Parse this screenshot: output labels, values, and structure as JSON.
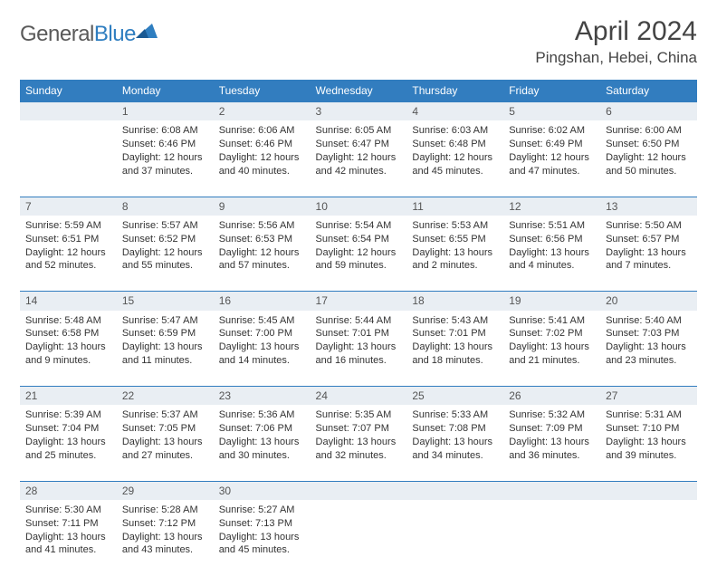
{
  "logo": {
    "text1": "General",
    "text2": "Blue"
  },
  "title": "April 2024",
  "location": "Pingshan, Hebei, China",
  "colors": {
    "header_bg": "#327dbf",
    "header_text": "#ffffff",
    "day_row_bg": "#e9eef3",
    "border": "#327dbf"
  },
  "weekdays": [
    "Sunday",
    "Monday",
    "Tuesday",
    "Wednesday",
    "Thursday",
    "Friday",
    "Saturday"
  ],
  "weeks": [
    {
      "nums": [
        "",
        "1",
        "2",
        "3",
        "4",
        "5",
        "6"
      ],
      "cells": [
        {
          "l1": "",
          "l2": "",
          "l3": "",
          "l4": ""
        },
        {
          "l1": "Sunrise: 6:08 AM",
          "l2": "Sunset: 6:46 PM",
          "l3": "Daylight: 12 hours",
          "l4": "and 37 minutes."
        },
        {
          "l1": "Sunrise: 6:06 AM",
          "l2": "Sunset: 6:46 PM",
          "l3": "Daylight: 12 hours",
          "l4": "and 40 minutes."
        },
        {
          "l1": "Sunrise: 6:05 AM",
          "l2": "Sunset: 6:47 PM",
          "l3": "Daylight: 12 hours",
          "l4": "and 42 minutes."
        },
        {
          "l1": "Sunrise: 6:03 AM",
          "l2": "Sunset: 6:48 PM",
          "l3": "Daylight: 12 hours",
          "l4": "and 45 minutes."
        },
        {
          "l1": "Sunrise: 6:02 AM",
          "l2": "Sunset: 6:49 PM",
          "l3": "Daylight: 12 hours",
          "l4": "and 47 minutes."
        },
        {
          "l1": "Sunrise: 6:00 AM",
          "l2": "Sunset: 6:50 PM",
          "l3": "Daylight: 12 hours",
          "l4": "and 50 minutes."
        }
      ]
    },
    {
      "nums": [
        "7",
        "8",
        "9",
        "10",
        "11",
        "12",
        "13"
      ],
      "cells": [
        {
          "l1": "Sunrise: 5:59 AM",
          "l2": "Sunset: 6:51 PM",
          "l3": "Daylight: 12 hours",
          "l4": "and 52 minutes."
        },
        {
          "l1": "Sunrise: 5:57 AM",
          "l2": "Sunset: 6:52 PM",
          "l3": "Daylight: 12 hours",
          "l4": "and 55 minutes."
        },
        {
          "l1": "Sunrise: 5:56 AM",
          "l2": "Sunset: 6:53 PM",
          "l3": "Daylight: 12 hours",
          "l4": "and 57 minutes."
        },
        {
          "l1": "Sunrise: 5:54 AM",
          "l2": "Sunset: 6:54 PM",
          "l3": "Daylight: 12 hours",
          "l4": "and 59 minutes."
        },
        {
          "l1": "Sunrise: 5:53 AM",
          "l2": "Sunset: 6:55 PM",
          "l3": "Daylight: 13 hours",
          "l4": "and 2 minutes."
        },
        {
          "l1": "Sunrise: 5:51 AM",
          "l2": "Sunset: 6:56 PM",
          "l3": "Daylight: 13 hours",
          "l4": "and 4 minutes."
        },
        {
          "l1": "Sunrise: 5:50 AM",
          "l2": "Sunset: 6:57 PM",
          "l3": "Daylight: 13 hours",
          "l4": "and 7 minutes."
        }
      ]
    },
    {
      "nums": [
        "14",
        "15",
        "16",
        "17",
        "18",
        "19",
        "20"
      ],
      "cells": [
        {
          "l1": "Sunrise: 5:48 AM",
          "l2": "Sunset: 6:58 PM",
          "l3": "Daylight: 13 hours",
          "l4": "and 9 minutes."
        },
        {
          "l1": "Sunrise: 5:47 AM",
          "l2": "Sunset: 6:59 PM",
          "l3": "Daylight: 13 hours",
          "l4": "and 11 minutes."
        },
        {
          "l1": "Sunrise: 5:45 AM",
          "l2": "Sunset: 7:00 PM",
          "l3": "Daylight: 13 hours",
          "l4": "and 14 minutes."
        },
        {
          "l1": "Sunrise: 5:44 AM",
          "l2": "Sunset: 7:01 PM",
          "l3": "Daylight: 13 hours",
          "l4": "and 16 minutes."
        },
        {
          "l1": "Sunrise: 5:43 AM",
          "l2": "Sunset: 7:01 PM",
          "l3": "Daylight: 13 hours",
          "l4": "and 18 minutes."
        },
        {
          "l1": "Sunrise: 5:41 AM",
          "l2": "Sunset: 7:02 PM",
          "l3": "Daylight: 13 hours",
          "l4": "and 21 minutes."
        },
        {
          "l1": "Sunrise: 5:40 AM",
          "l2": "Sunset: 7:03 PM",
          "l3": "Daylight: 13 hours",
          "l4": "and 23 minutes."
        }
      ]
    },
    {
      "nums": [
        "21",
        "22",
        "23",
        "24",
        "25",
        "26",
        "27"
      ],
      "cells": [
        {
          "l1": "Sunrise: 5:39 AM",
          "l2": "Sunset: 7:04 PM",
          "l3": "Daylight: 13 hours",
          "l4": "and 25 minutes."
        },
        {
          "l1": "Sunrise: 5:37 AM",
          "l2": "Sunset: 7:05 PM",
          "l3": "Daylight: 13 hours",
          "l4": "and 27 minutes."
        },
        {
          "l1": "Sunrise: 5:36 AM",
          "l2": "Sunset: 7:06 PM",
          "l3": "Daylight: 13 hours",
          "l4": "and 30 minutes."
        },
        {
          "l1": "Sunrise: 5:35 AM",
          "l2": "Sunset: 7:07 PM",
          "l3": "Daylight: 13 hours",
          "l4": "and 32 minutes."
        },
        {
          "l1": "Sunrise: 5:33 AM",
          "l2": "Sunset: 7:08 PM",
          "l3": "Daylight: 13 hours",
          "l4": "and 34 minutes."
        },
        {
          "l1": "Sunrise: 5:32 AM",
          "l2": "Sunset: 7:09 PM",
          "l3": "Daylight: 13 hours",
          "l4": "and 36 minutes."
        },
        {
          "l1": "Sunrise: 5:31 AM",
          "l2": "Sunset: 7:10 PM",
          "l3": "Daylight: 13 hours",
          "l4": "and 39 minutes."
        }
      ]
    },
    {
      "nums": [
        "28",
        "29",
        "30",
        "",
        "",
        "",
        ""
      ],
      "cells": [
        {
          "l1": "Sunrise: 5:30 AM",
          "l2": "Sunset: 7:11 PM",
          "l3": "Daylight: 13 hours",
          "l4": "and 41 minutes."
        },
        {
          "l1": "Sunrise: 5:28 AM",
          "l2": "Sunset: 7:12 PM",
          "l3": "Daylight: 13 hours",
          "l4": "and 43 minutes."
        },
        {
          "l1": "Sunrise: 5:27 AM",
          "l2": "Sunset: 7:13 PM",
          "l3": "Daylight: 13 hours",
          "l4": "and 45 minutes."
        },
        {
          "l1": "",
          "l2": "",
          "l3": "",
          "l4": ""
        },
        {
          "l1": "",
          "l2": "",
          "l3": "",
          "l4": ""
        },
        {
          "l1": "",
          "l2": "",
          "l3": "",
          "l4": ""
        },
        {
          "l1": "",
          "l2": "",
          "l3": "",
          "l4": ""
        }
      ]
    }
  ]
}
